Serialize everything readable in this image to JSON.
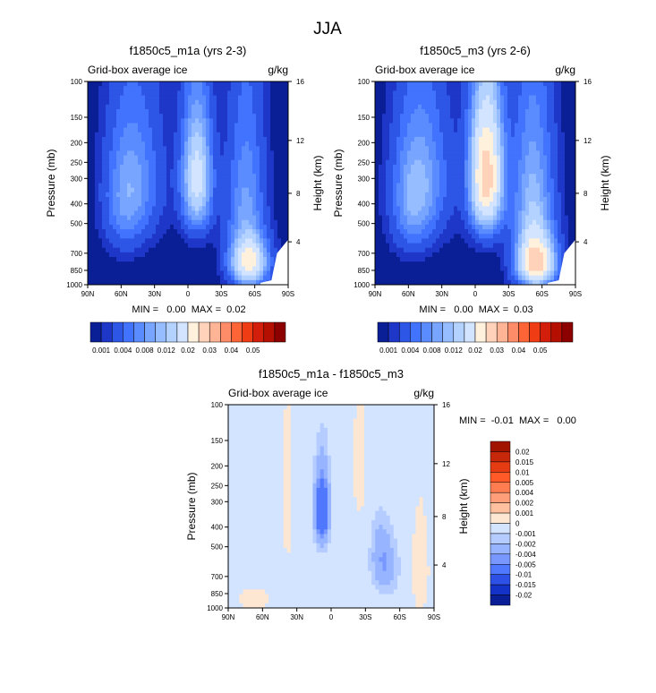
{
  "figure": {
    "title": "JJA"
  },
  "chart_data": [
    {
      "type": "heatmap",
      "title": "f1850c5_m1a (yrs 2-3)",
      "left_label": "Grid-box average ice",
      "right_label": "g/kg",
      "ylabel": "Pressure (mb)",
      "ylabel_right": "Height (km)",
      "x_ticks": [
        "90N",
        "60N",
        "30N",
        "0",
        "30S",
        "60S",
        "90S"
      ],
      "y_ticks": [
        "100",
        "150",
        "200",
        "250",
        "300",
        "400",
        "500",
        "700",
        "850",
        "1000"
      ],
      "height_ticks": [
        "16",
        "12",
        "8",
        "4"
      ],
      "stats": "MIN =   0.00  MAX =  0.02",
      "colorbar_labels": [
        "0.001",
        "0.004",
        "0.008",
        "0.012",
        "0.02",
        "0.03",
        "0.04",
        "0.05"
      ],
      "colorbar_colors": [
        "#0a1e96",
        "#1e37c8",
        "#2d55e6",
        "#4173ff",
        "#5a8cff",
        "#78a5ff",
        "#96bdff",
        "#b4d2ff",
        "#d2e4ff",
        "#fff1dc",
        "#ffd2b9",
        "#ffb496",
        "#ff8c69",
        "#ff6437",
        "#f03c14",
        "#d21e0a",
        "#b40f00",
        "#8c0000"
      ],
      "blobs": [
        {
          "lat": -8,
          "p": 300,
          "lat_w": 9,
          "p_w": 140,
          "amp": 0.017
        },
        {
          "lat": 46,
          "p": 300,
          "lat_w": 16,
          "p_w": 170,
          "amp": 0.006
        },
        {
          "lat": 57,
          "p": 400,
          "lat_w": 12,
          "p_w": 170,
          "amp": 0.005
        },
        {
          "lat": -52,
          "p": 420,
          "lat_w": 11,
          "p_w": 260,
          "amp": 0.008
        },
        {
          "lat": -55,
          "p": 780,
          "lat_w": 11,
          "p_w": 140,
          "amp": 0.02
        }
      ]
    },
    {
      "type": "heatmap",
      "title": "f1850c5_m3 (yrs 2-6)",
      "left_label": "Grid-box average ice",
      "right_label": "g/kg",
      "ylabel": "Pressure (mb)",
      "ylabel_right": "Height (km)",
      "x_ticks": [
        "90N",
        "60N",
        "30N",
        "0",
        "30S",
        "60S",
        "90S"
      ],
      "y_ticks": [
        "100",
        "150",
        "200",
        "250",
        "300",
        "400",
        "500",
        "700",
        "850",
        "1000"
      ],
      "height_ticks": [
        "16",
        "12",
        "8",
        "4"
      ],
      "stats": "MIN =   0.00  MAX =  0.03",
      "colorbar_labels": [
        "0.001",
        "0.004",
        "0.008",
        "0.012",
        "0.02",
        "0.03",
        "0.04",
        "0.05"
      ],
      "colorbar_colors": [
        "#0a1e96",
        "#1e37c8",
        "#2d55e6",
        "#4173ff",
        "#5a8cff",
        "#78a5ff",
        "#96bdff",
        "#b4d2ff",
        "#d2e4ff",
        "#fff1dc",
        "#ffd2b9",
        "#ffb496",
        "#ff8c69",
        "#ff6437",
        "#f03c14",
        "#d21e0a",
        "#b40f00",
        "#8c0000"
      ],
      "blobs": [
        {
          "lat": -10,
          "p": 290,
          "lat_w": 10,
          "p_w": 150,
          "amp": 0.028
        },
        {
          "lat": 46,
          "p": 300,
          "lat_w": 16,
          "p_w": 170,
          "amp": 0.007
        },
        {
          "lat": 57,
          "p": 400,
          "lat_w": 12,
          "p_w": 170,
          "amp": 0.006
        },
        {
          "lat": -52,
          "p": 430,
          "lat_w": 12,
          "p_w": 270,
          "amp": 0.011
        },
        {
          "lat": -55,
          "p": 780,
          "lat_w": 11,
          "p_w": 150,
          "amp": 0.025
        }
      ]
    },
    {
      "type": "heatmap",
      "title": "f1850c5_m1a - f1850c5_m3",
      "left_label": "Grid-box average ice",
      "right_label": "g/kg",
      "ylabel": "Pressure (mb)",
      "ylabel_right": "Height (km)",
      "x_ticks": [
        "90N",
        "60N",
        "30N",
        "0",
        "30S",
        "60S",
        "90S"
      ],
      "y_ticks": [
        "100",
        "150",
        "200",
        "250",
        "300",
        "400",
        "500",
        "700",
        "850",
        "1000"
      ],
      "height_ticks": [
        "16",
        "12",
        "8",
        "4"
      ],
      "stats": "MIN =  -0.01  MAX =   0.00",
      "colorbar_labels": [
        "0.02",
        "0.015",
        "0.01",
        "0.005",
        "0.004",
        "0.002",
        "0.001",
        "0",
        "-0.001",
        "-0.002",
        "-0.004",
        "-0.005",
        "-0.01",
        "-0.015",
        "-0.02"
      ],
      "colorbar_colors": [
        "#a01400",
        "#c8280a",
        "#e63c14",
        "#ff5a28",
        "#ff7d50",
        "#ff9e78",
        "#ffc0a0",
        "#fde6d2",
        "#d2e4ff",
        "#b4ccff",
        "#96b4ff",
        "#7898ff",
        "#5078ff",
        "#2d50e6",
        "#1432c8",
        "#0a1e96"
      ],
      "blobs": [
        {
          "lat": 8,
          "p": 330,
          "lat_w": 4,
          "p_w": 90,
          "amp": -0.009
        },
        {
          "lat": -47,
          "p": 620,
          "lat_w": 7,
          "p_w": 130,
          "amp": -0.0035
        },
        {
          "lat": -42,
          "p": 470,
          "lat_w": 5,
          "p_w": 110,
          "amp": -0.0012
        },
        {
          "lat": 68,
          "p": 900,
          "lat_w": 14,
          "p_w": 120,
          "amp": 0.0006
        },
        {
          "lat": -78,
          "p": 650,
          "lat_w": 8,
          "p_w": 400,
          "amp": 0.0006
        },
        {
          "lat": 38,
          "p": 300,
          "lat_w": 6,
          "p_w": 350,
          "amp": 0.0005
        },
        {
          "lat": -25,
          "p": 200,
          "lat_w": 8,
          "p_w": 200,
          "amp": 0.0005
        }
      ]
    }
  ]
}
